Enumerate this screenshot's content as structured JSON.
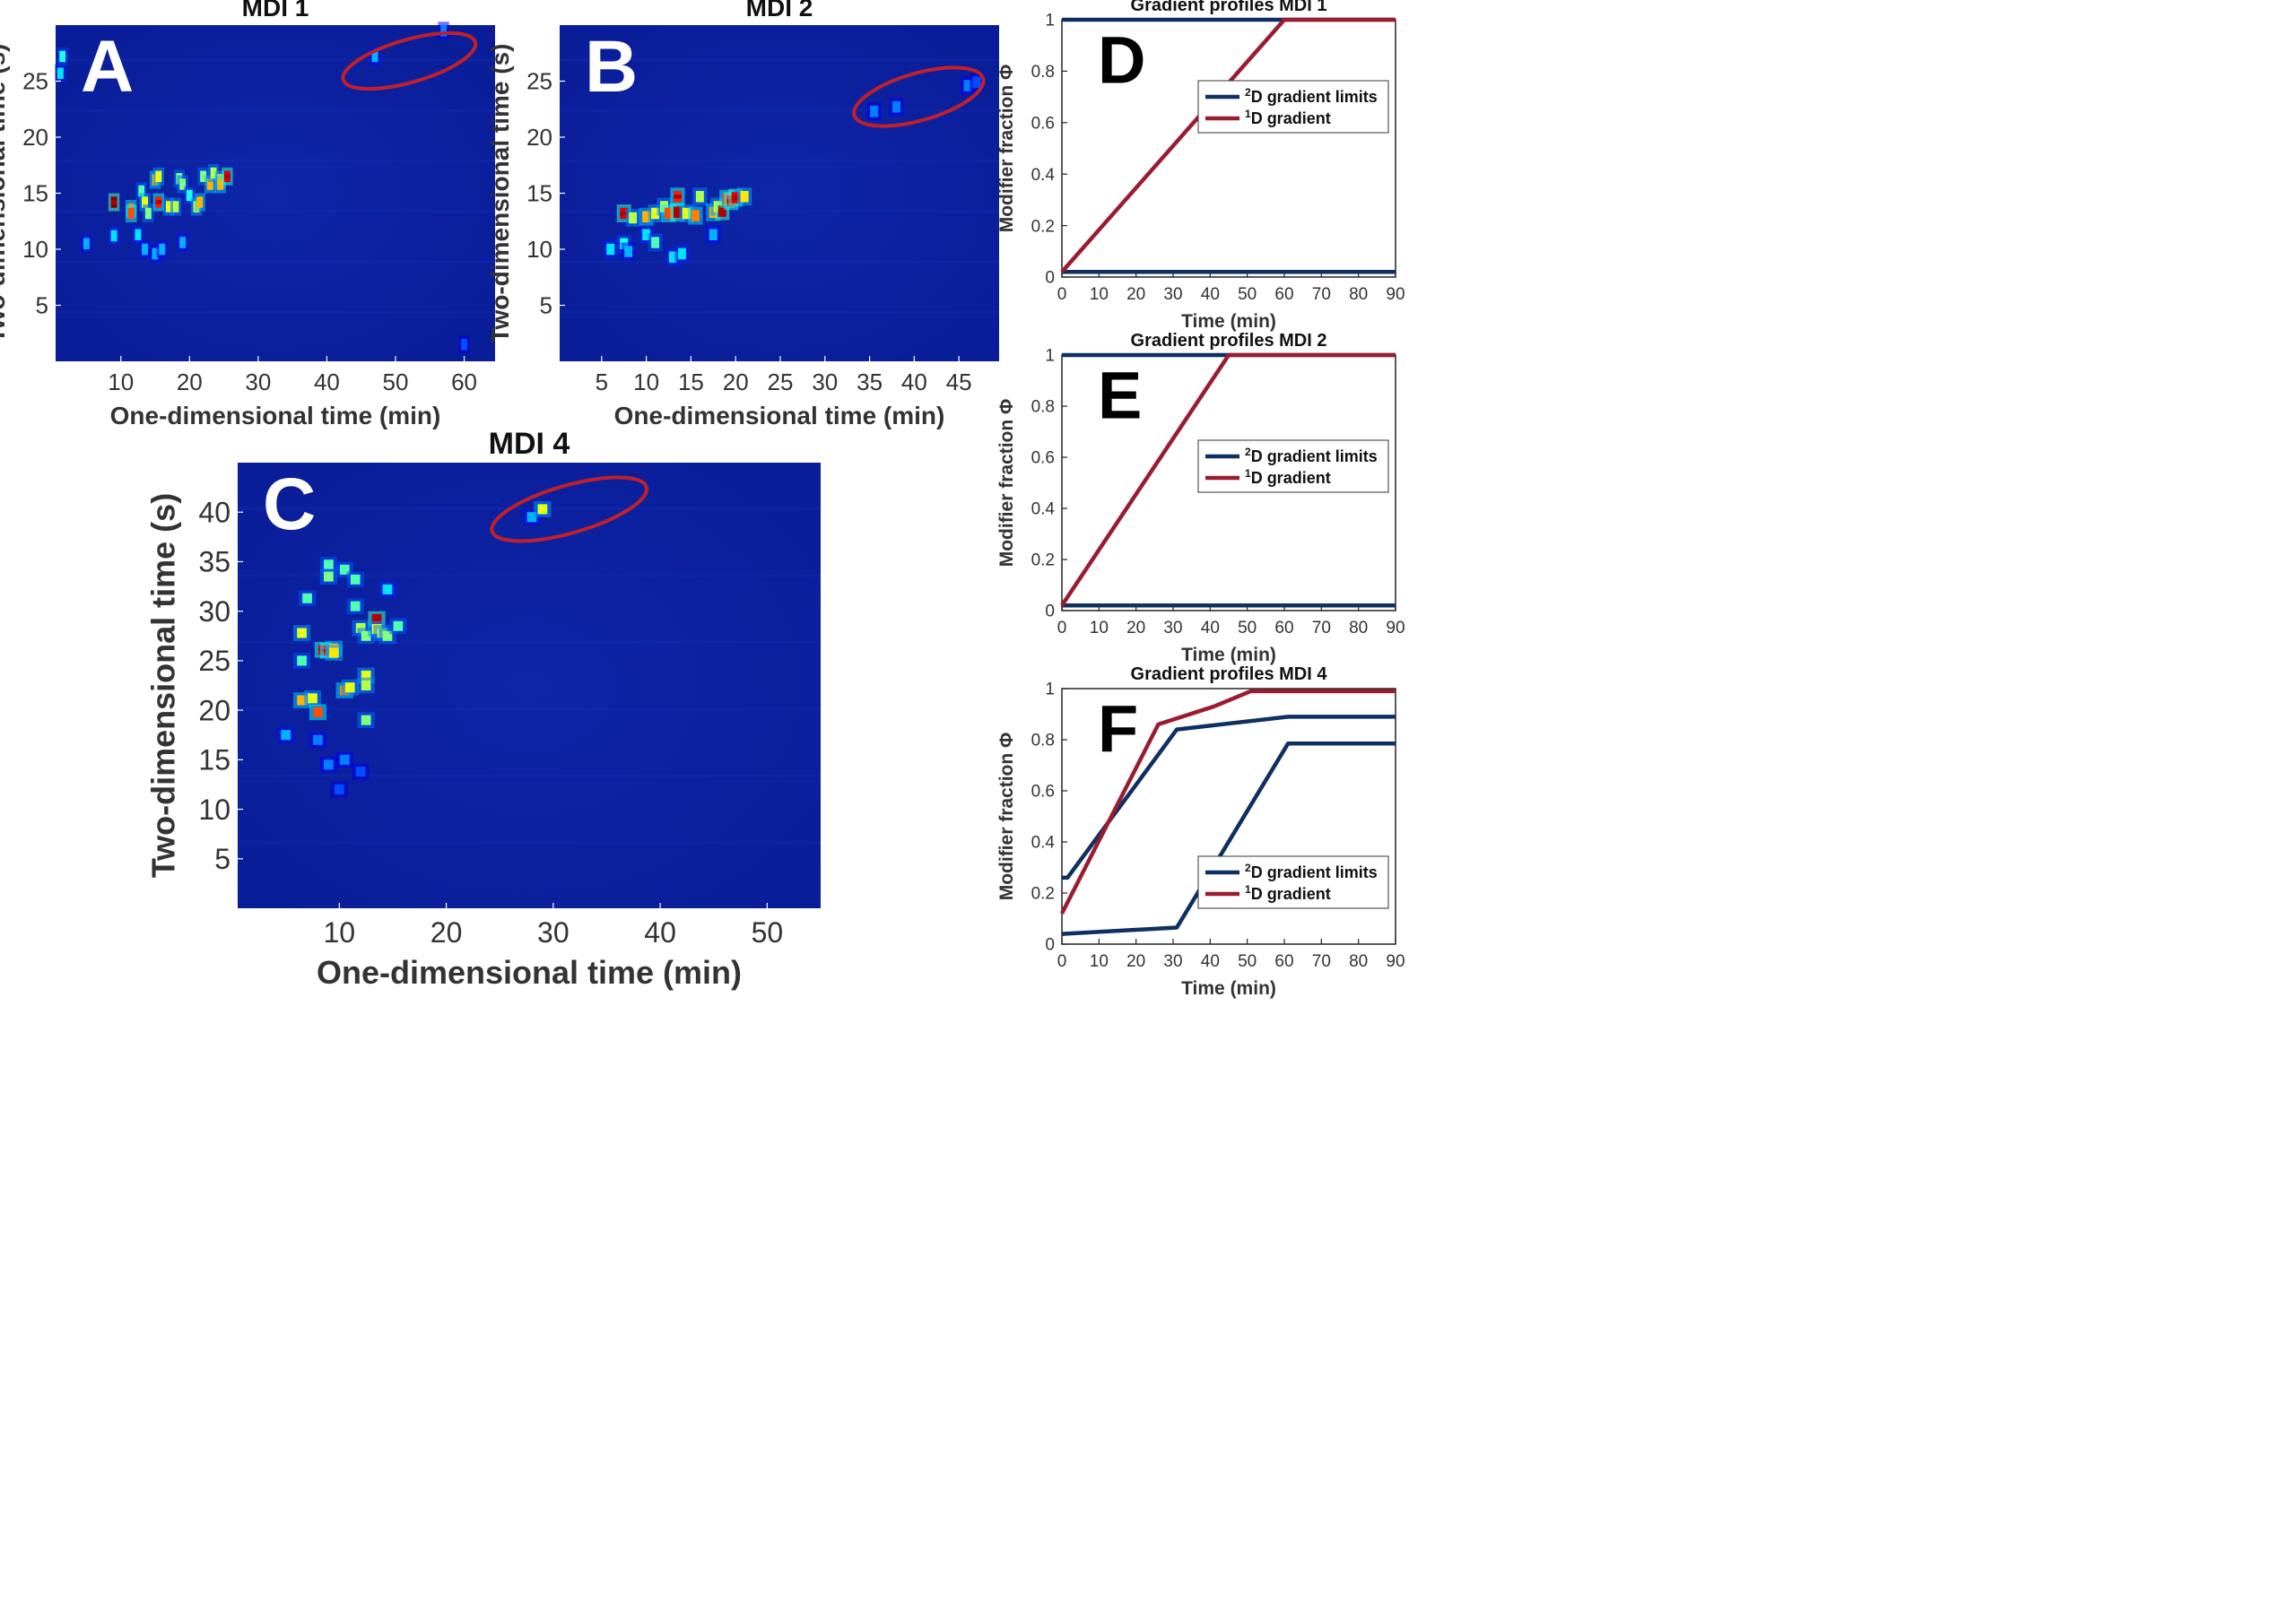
{
  "colors": {
    "heat_background": "#0b1f9e",
    "ellipse": "#c0202a",
    "limits_line": "#0f2f63",
    "gradient_line": "#9a1c30",
    "letter_on_heatmap": "#ffffff",
    "letter_on_line": "#000000"
  },
  "chart_data": [
    {
      "id": "A",
      "type": "heatmap",
      "letter": "A",
      "title": "MDI 1",
      "xlabel": "One-dimensional time (min)",
      "ylabel": "Two-dimensional time (s)",
      "xlim": [
        0.5,
        64.5
      ],
      "ylim": [
        0,
        30
      ],
      "xticks": [
        10,
        20,
        30,
        40,
        50,
        60
      ],
      "yticks": [
        5,
        10,
        15,
        20,
        25
      ],
      "ellipse": {
        "cx": 52,
        "cy": 26.8,
        "rx": 10,
        "ry": 1.9
      },
      "peaks": [
        [
          9,
          14.2,
          1.0
        ],
        [
          11.5,
          13.6,
          0.75
        ],
        [
          11.5,
          13.2,
          0.8
        ],
        [
          13,
          15.2,
          0.45
        ],
        [
          13.5,
          14.2,
          0.6
        ],
        [
          14,
          13.2,
          0.5
        ],
        [
          15,
          16.2,
          0.7
        ],
        [
          15.5,
          14.2,
          0.85
        ],
        [
          15.5,
          16.5,
          0.6
        ],
        [
          17,
          13.8,
          0.6
        ],
        [
          18,
          13.8,
          0.55
        ],
        [
          18.5,
          16.3,
          0.5
        ],
        [
          19,
          15.8,
          0.5
        ],
        [
          20,
          14.8,
          0.4
        ],
        [
          21,
          13.8,
          0.6
        ],
        [
          21.5,
          14.2,
          0.7
        ],
        [
          22,
          16.5,
          0.5
        ],
        [
          23,
          15.8,
          0.7
        ],
        [
          23.5,
          16.8,
          0.55
        ],
        [
          24.5,
          16.2,
          0.65
        ],
        [
          24.5,
          15.8,
          0.7
        ],
        [
          25.5,
          16.5,
          0.9
        ],
        [
          9,
          11.2,
          0.35
        ],
        [
          12.5,
          11.3,
          0.35
        ],
        [
          13.5,
          10,
          0.3
        ],
        [
          15,
          9.6,
          0.3
        ],
        [
          16,
          10,
          0.3
        ],
        [
          19,
          10.6,
          0.3
        ],
        [
          5,
          10.5,
          0.3
        ],
        [
          1.5,
          27.2,
          0.4
        ],
        [
          1.2,
          25.7,
          0.35
        ],
        [
          47,
          27.2,
          0.3
        ],
        [
          57,
          29.5,
          0.25
        ],
        [
          60,
          1.5,
          0.2
        ]
      ]
    },
    {
      "id": "B",
      "type": "heatmap",
      "letter": "B",
      "title": "MDI 2",
      "xlabel": "One-dimensional time (min)",
      "ylabel": "Two-dimensional time (s)",
      "xlim": [
        0.3,
        49.5
      ],
      "ylim": [
        0,
        30
      ],
      "xticks": [
        5,
        10,
        15,
        20,
        25,
        30,
        35,
        40,
        45
      ],
      "yticks": [
        5,
        10,
        15,
        20,
        25
      ],
      "ellipse": {
        "cx": 40.5,
        "cy": 23.6,
        "rx": 7.5,
        "ry": 2.1
      },
      "peaks": [
        [
          7.5,
          13.2,
          0.9
        ],
        [
          8.5,
          12.8,
          0.55
        ],
        [
          10,
          12.9,
          0.7
        ],
        [
          11,
          13.2,
          0.6
        ],
        [
          12,
          13.8,
          0.55
        ],
        [
          12.5,
          13.2,
          0.8
        ],
        [
          13.5,
          13.3,
          0.95
        ],
        [
          13.5,
          14.7,
          0.85
        ],
        [
          14.5,
          13.2,
          0.6
        ],
        [
          15.5,
          13,
          0.75
        ],
        [
          16,
          14.7,
          0.55
        ],
        [
          17.5,
          13.3,
          0.7
        ],
        [
          18,
          13.8,
          0.6
        ],
        [
          18.5,
          13.4,
          0.95
        ],
        [
          19,
          14.5,
          0.8
        ],
        [
          19.5,
          14.3,
          0.85
        ],
        [
          20,
          14.6,
          0.9
        ],
        [
          21,
          14.7,
          0.65
        ],
        [
          6,
          10,
          0.35
        ],
        [
          7.5,
          10.5,
          0.4
        ],
        [
          8,
          9.8,
          0.3
        ],
        [
          10,
          11.3,
          0.35
        ],
        [
          11,
          10.6,
          0.45
        ],
        [
          13,
          9.3,
          0.35
        ],
        [
          14,
          9.6,
          0.35
        ],
        [
          17.5,
          11.3,
          0.3
        ],
        [
          35.5,
          22.3,
          0.25
        ],
        [
          38,
          22.7,
          0.25
        ],
        [
          46,
          24.6,
          0.25
        ],
        [
          47,
          24.9,
          0.2
        ]
      ]
    },
    {
      "id": "C",
      "type": "heatmap",
      "letter": "C",
      "title": "MDI 4",
      "xlabel": "One-dimensional time (min)",
      "ylabel": "Two-dimensional time (s)",
      "xlim": [
        0.5,
        55
      ],
      "ylim": [
        0,
        45
      ],
      "xticks": [
        10,
        20,
        30,
        40,
        50
      ],
      "yticks": [
        5,
        10,
        15,
        20,
        25,
        30,
        35,
        40
      ],
      "ellipse": {
        "cx": 31.5,
        "cy": 40.3,
        "rx": 7.5,
        "ry": 2.4
      },
      "peaks": [
        [
          6.5,
          27.8,
          0.6
        ],
        [
          6.5,
          25,
          0.45
        ],
        [
          6.5,
          21,
          0.7
        ],
        [
          7,
          31.3,
          0.45
        ],
        [
          7.5,
          21.2,
          0.6
        ],
        [
          8,
          19.8,
          0.8
        ],
        [
          8.5,
          26.1,
          0.9
        ],
        [
          9,
          26,
          0.85
        ],
        [
          9,
          34.7,
          0.45
        ],
        [
          9,
          33.5,
          0.5
        ],
        [
          9.5,
          26.2,
          0.7
        ],
        [
          9.5,
          25.8,
          0.65
        ],
        [
          10.5,
          34.2,
          0.45
        ],
        [
          10.5,
          22,
          0.75
        ],
        [
          11,
          22.3,
          0.6
        ],
        [
          11.5,
          33.2,
          0.45
        ],
        [
          11.5,
          30.5,
          0.45
        ],
        [
          12,
          28.3,
          0.55
        ],
        [
          12.5,
          23.5,
          0.6
        ],
        [
          12.5,
          22.5,
          0.55
        ],
        [
          12.5,
          27.5,
          0.5
        ],
        [
          12.5,
          19,
          0.5
        ],
        [
          13.5,
          29.2,
          0.95
        ],
        [
          13.5,
          28.2,
          0.6
        ],
        [
          14,
          27.8,
          0.55
        ],
        [
          14.5,
          27.5,
          0.5
        ],
        [
          14.5,
          32.2,
          0.35
        ],
        [
          15.5,
          28.5,
          0.45
        ],
        [
          5,
          17.5,
          0.3
        ],
        [
          8,
          17,
          0.25
        ],
        [
          9,
          14.5,
          0.25
        ],
        [
          10,
          12,
          0.2
        ],
        [
          10.5,
          15,
          0.25
        ],
        [
          12,
          13.8,
          0.2
        ],
        [
          28,
          39.5,
          0.3
        ],
        [
          29,
          40.3,
          0.6
        ]
      ]
    },
    {
      "id": "D",
      "type": "line",
      "letter": "D",
      "title": "Gradient profiles MDI 1",
      "xlabel": "Time (min)",
      "ylabel": "Modifier fraction Φ",
      "xlim": [
        0,
        90
      ],
      "ylim": [
        0,
        1
      ],
      "xticks": [
        0,
        10,
        20,
        30,
        40,
        50,
        60,
        70,
        80,
        90
      ],
      "yticks": [
        0,
        0.2,
        0.4,
        0.6,
        0.8,
        1
      ],
      "legend": {
        "position": "top-right"
      },
      "series": [
        {
          "name": "2D gradient limits",
          "sup": "2",
          "label_rest": "D gradient limits",
          "color": "#0f2f63",
          "lines": [
            {
              "x": [
                0,
                90
              ],
              "y": [
                0.02,
                0.02
              ]
            },
            {
              "x": [
                0,
                90
              ],
              "y": [
                1,
                1
              ]
            }
          ]
        },
        {
          "name": "1D gradient",
          "sup": "1",
          "label_rest": "D gradient",
          "color": "#9a1c30",
          "lines": [
            {
              "x": [
                0,
                60,
                90
              ],
              "y": [
                0.02,
                1,
                1
              ]
            }
          ]
        }
      ]
    },
    {
      "id": "E",
      "type": "line",
      "letter": "E",
      "title": "Gradient profiles MDI 2",
      "xlabel": "Time (min)",
      "ylabel": "Modifier fraction Φ",
      "xlim": [
        0,
        90
      ],
      "ylim": [
        0,
        1
      ],
      "xticks": [
        0,
        10,
        20,
        30,
        40,
        50,
        60,
        70,
        80,
        90
      ],
      "yticks": [
        0,
        0.2,
        0.4,
        0.6,
        0.8,
        1
      ],
      "legend": {
        "position": "upper-right"
      },
      "series": [
        {
          "name": "2D gradient limits",
          "sup": "2",
          "label_rest": "D gradient limits",
          "color": "#0f2f63",
          "lines": [
            {
              "x": [
                0,
                90
              ],
              "y": [
                0.02,
                0.02
              ]
            },
            {
              "x": [
                0,
                90
              ],
              "y": [
                1,
                1
              ]
            }
          ]
        },
        {
          "name": "1D gradient",
          "sup": "1",
          "label_rest": "D gradient",
          "color": "#9a1c30",
          "lines": [
            {
              "x": [
                0,
                45,
                90
              ],
              "y": [
                0.02,
                1,
                1
              ]
            }
          ]
        }
      ]
    },
    {
      "id": "F",
      "type": "line",
      "letter": "F",
      "title": "Gradient profiles MDI 4",
      "xlabel": "Time (min)",
      "ylabel": "Modifier fraction Φ",
      "xlim": [
        0,
        90
      ],
      "ylim": [
        0,
        1
      ],
      "xticks": [
        0,
        10,
        20,
        30,
        40,
        50,
        60,
        70,
        80,
        90
      ],
      "yticks": [
        0,
        0.2,
        0.4,
        0.6,
        0.8,
        1
      ],
      "legend": {
        "position": "bottom-right"
      },
      "series": [
        {
          "name": "2D gradient limits",
          "sup": "2",
          "label_rest": "D gradient limits",
          "color": "#0f2f63",
          "lines": [
            {
              "x": [
                0,
                1.5,
                31,
                61,
                90
              ],
              "y": [
                0.26,
                0.26,
                0.84,
                0.89,
                0.89
              ]
            },
            {
              "x": [
                0,
                31,
                61,
                90
              ],
              "y": [
                0.04,
                0.065,
                0.785,
                0.785
              ]
            }
          ]
        },
        {
          "name": "1D gradient",
          "sup": "1",
          "label_rest": "D gradient",
          "color": "#9a1c30",
          "lines": [
            {
              "x": [
                0,
                26,
                41,
                51,
                90
              ],
              "y": [
                0.12,
                0.86,
                0.93,
                0.99,
                0.99
              ]
            }
          ]
        }
      ]
    }
  ]
}
